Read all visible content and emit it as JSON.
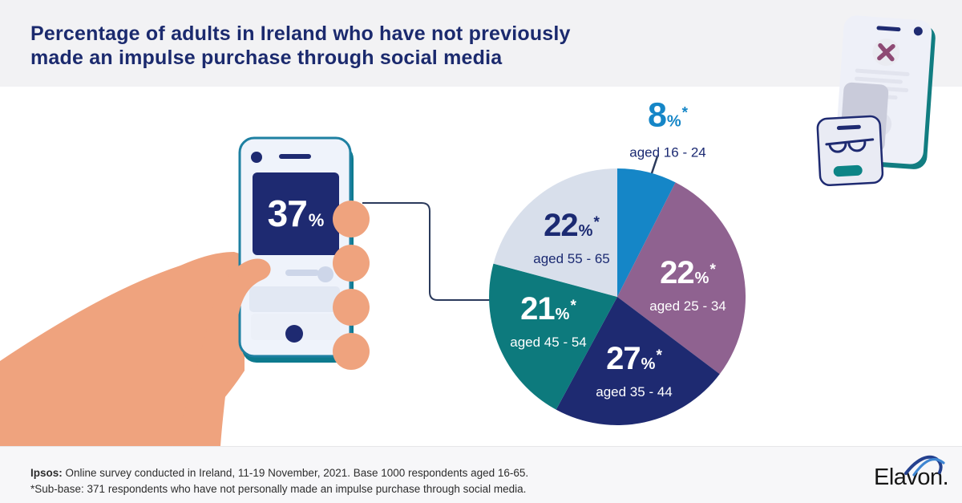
{
  "header": {
    "title_line1": "Percentage of adults in Ireland who have not previously",
    "title_line2": "made an impulse purchase through social media",
    "background": "#f2f2f4",
    "title_color": "#1b2a6e"
  },
  "phone_stat": {
    "value": "37",
    "suffix": "%"
  },
  "chart_data": {
    "type": "pie",
    "title": "Percentage of adults in Ireland who have not previously made an impulse purchase through social media",
    "start_angle_deg": 0,
    "clockwise": true,
    "center_note": "labels inside slices except 16-24 which uses an outside callout",
    "segments": [
      {
        "id": "16-24",
        "label": "aged 16 - 24",
        "value": 8,
        "suffix": "%",
        "note_marker": "*",
        "color": "#1586c7",
        "drawn_span_deg": 27,
        "label_style": "callout-outside-blue"
      },
      {
        "id": "25-34",
        "label": "aged 25 - 34",
        "value": 22,
        "suffix": "%",
        "note_marker": "*",
        "color": "#8f6290",
        "drawn_span_deg": 100,
        "label_style": "inside-white"
      },
      {
        "id": "35-44",
        "label": "aged 35 - 44",
        "value": 27,
        "suffix": "%",
        "note_marker": "*",
        "color": "#1e2a71",
        "drawn_span_deg": 81.5,
        "label_style": "inside-white"
      },
      {
        "id": "45-54",
        "label": "aged 45 - 54",
        "value": 21,
        "suffix": "%",
        "note_marker": "*",
        "color": "#0d7a7d",
        "drawn_span_deg": 76.5,
        "label_style": "inside-white"
      },
      {
        "id": "55-65",
        "label": "aged 55 - 65",
        "value": 22,
        "suffix": "%",
        "note_marker": "*",
        "color": "#d8dfeb",
        "drawn_span_deg": 75,
        "label_style": "inside-navy"
      }
    ]
  },
  "footer": {
    "source_label": "Ipsos:",
    "source_rest": " Online survey conducted in Ireland, 11-19 November, 2021. Base 1000 respondents aged 16-65.",
    "subbase_note": "*Sub-base: 371 respondents who have not personally made an impulse purchase through social media.",
    "background": "#f7f7f9"
  },
  "logo": {
    "text": "Elavon."
  },
  "colors": {
    "accent_blue": "#1586c7",
    "navy": "#1e2a71",
    "teal": "#0d7a7d",
    "purple": "#8f6290",
    "light_slice": "#d8dfeb",
    "skin": "#efa37e",
    "connector_line": "#2b3a5c",
    "phone_outline": "#1e80a2",
    "illu_teal_edge": "#117d81",
    "x_mark_plum": "#8e4a74"
  }
}
